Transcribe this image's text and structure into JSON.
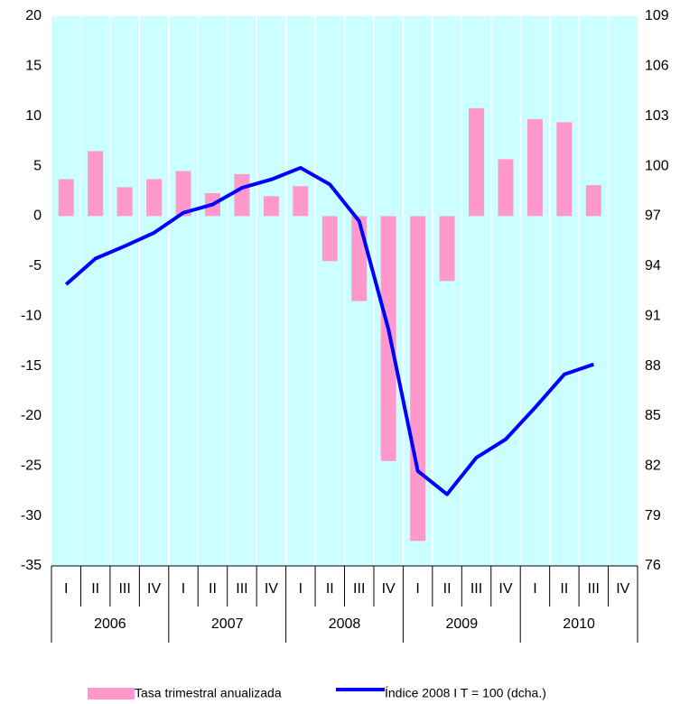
{
  "chart_data": {
    "type": "bar_line",
    "categories": [
      "I",
      "II",
      "III",
      "IV",
      "I",
      "II",
      "III",
      "IV",
      "I",
      "II",
      "III",
      "IV",
      "I",
      "II",
      "III",
      "IV",
      "I",
      "II",
      "III",
      "IV"
    ],
    "years": [
      "2006",
      "2007",
      "2008",
      "2009",
      "2010"
    ],
    "series": [
      {
        "name": "Tasa trimestral anualizada",
        "color": "#ff99cc",
        "type": "bar",
        "values": [
          3.7,
          6.5,
          2.9,
          3.7,
          4.5,
          2.3,
          4.2,
          2.0,
          3.0,
          -4.5,
          -8.5,
          -24.5,
          -32.5,
          -6.5,
          10.8,
          5.7,
          9.7,
          9.4,
          3.1,
          null
        ]
      },
      {
        "name": "Índice 2008 I T = 100 (dcha.)",
        "color": "#0000ff",
        "type": "line",
        "axis": "y2",
        "values": [
          92.9,
          94.45,
          95.2,
          96.0,
          97.2,
          97.7,
          98.7,
          99.2,
          99.9,
          98.9,
          96.7,
          90.2,
          81.7,
          80.3,
          82.5,
          83.6,
          85.5,
          87.5,
          88.1,
          null
        ]
      }
    ],
    "ylim": [
      -35,
      20
    ],
    "yticks": [
      -35,
      -30,
      -25,
      -20,
      -15,
      -10,
      -5,
      0,
      5,
      10,
      15,
      20
    ],
    "y2lim": [
      76,
      109
    ],
    "y2ticks": [
      76,
      79,
      82,
      85,
      88,
      91,
      94,
      97,
      100,
      103,
      106,
      109
    ],
    "plot_background": "#ccffff"
  }
}
